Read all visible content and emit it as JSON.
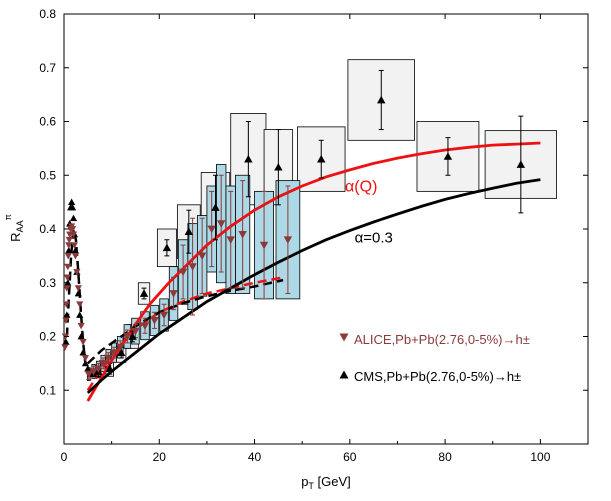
{
  "chart_data": {
    "type": "scatter",
    "xlabel": "p",
    "xlabel_sub": "T",
    "xlabel_unit": "[GeV]",
    "ylabel": "R",
    "ylabel_sub": "AA",
    "ylabel_sup": "π",
    "xlim": [
      0,
      110
    ],
    "ylim": [
      0.0,
      0.8
    ],
    "xticks": [
      "0",
      "20",
      "40",
      "60",
      "80",
      "100"
    ],
    "yticks": [
      "0.1",
      "0.2",
      "0.3",
      "0.4",
      "0.5",
      "0.6",
      "0.7",
      "0.8"
    ],
    "legend": [
      {
        "label": "ALICE,Pb+Pb(2.76,0-5%)→h±",
        "color": "#8b3a3a",
        "marker": "triangle-down"
      },
      {
        "label": "CMS,Pb+Pb(2.76,0-5%)→h±",
        "color": "#000000",
        "marker": "triangle-up"
      }
    ],
    "annotations": [
      {
        "text": "α(Q)",
        "x": 59,
        "y": 0.47,
        "color": "#ee1111"
      },
      {
        "text": "α=0.3",
        "x": 61,
        "y": 0.375,
        "color": "#000000"
      }
    ],
    "curves": [
      {
        "name": "α(Q)",
        "color": "#ee1111",
        "dash": false,
        "x": [
          5,
          7,
          10,
          14,
          18,
          22,
          26,
          30,
          35,
          40,
          45,
          50,
          55,
          60,
          65,
          70,
          75,
          80,
          85,
          90,
          95,
          100
        ],
        "y": [
          0.08,
          0.11,
          0.155,
          0.21,
          0.26,
          0.3,
          0.335,
          0.37,
          0.405,
          0.435,
          0.46,
          0.48,
          0.497,
          0.51,
          0.522,
          0.532,
          0.54,
          0.547,
          0.552,
          0.556,
          0.558,
          0.56
        ]
      },
      {
        "name": "α(Q) dashed",
        "color": "#ee1111",
        "dash": true,
        "x": [
          5,
          8,
          12,
          16,
          20,
          25,
          30,
          35,
          40,
          46
        ],
        "y": [
          0.1,
          0.14,
          0.185,
          0.22,
          0.245,
          0.265,
          0.28,
          0.29,
          0.3,
          0.31
        ]
      },
      {
        "name": "α=0.3",
        "color": "#000000",
        "dash": false,
        "x": [
          5,
          8,
          10,
          15,
          20,
          25,
          30,
          35,
          40,
          45,
          50,
          55,
          60,
          65,
          70,
          75,
          80,
          85,
          90,
          95,
          100
        ],
        "y": [
          0.095,
          0.12,
          0.135,
          0.17,
          0.205,
          0.235,
          0.265,
          0.29,
          0.315,
          0.338,
          0.36,
          0.38,
          0.397,
          0.413,
          0.428,
          0.442,
          0.455,
          0.466,
          0.476,
          0.485,
          0.492
        ]
      },
      {
        "name": "α=0.3 dashed",
        "color": "#000000",
        "dash": true,
        "x": [
          5,
          8,
          12,
          16,
          20,
          25,
          30,
          35,
          40,
          46
        ],
        "y": [
          0.15,
          0.175,
          0.2,
          0.225,
          0.245,
          0.262,
          0.275,
          0.285,
          0.293,
          0.305
        ]
      },
      {
        "name": "low-pT black dashed",
        "color": "#000000",
        "dash": true,
        "x": [
          0.6,
          1.0,
          1.5,
          2.0,
          2.5,
          3.0,
          3.5,
          4.0,
          4.5
        ],
        "y": [
          0.2,
          0.27,
          0.35,
          0.4,
          0.38,
          0.32,
          0.25,
          0.19,
          0.15
        ]
      }
    ],
    "series": [
      {
        "name": "CMS",
        "color": "#000000",
        "marker": "triangle-up",
        "box_fill": "#f2f2f2",
        "points": [
          {
            "x": 7.2,
            "y": 0.135,
            "xerr": 0.6,
            "yerr": 0.01,
            "syst": 0.012
          },
          {
            "x": 9.6,
            "y": 0.14,
            "xerr": 0.8,
            "yerr": 0.01,
            "syst": 0.014
          },
          {
            "x": 12.0,
            "y": 0.17,
            "xerr": 1.0,
            "yerr": 0.01,
            "syst": 0.018
          },
          {
            "x": 14.4,
            "y": 0.2,
            "xerr": 1.2,
            "yerr": 0.01,
            "syst": 0.022
          },
          {
            "x": 16.8,
            "y": 0.28,
            "xerr": 1.2,
            "yerr": 0.01,
            "syst": 0.02
          },
          {
            "x": 21.6,
            "y": 0.365,
            "xerr": 2.0,
            "yerr": 0.015,
            "syst": 0.035
          },
          {
            "x": 26.2,
            "y": 0.395,
            "xerr": 2.4,
            "yerr": 0.04,
            "syst": 0.05
          },
          {
            "x": 31.8,
            "y": 0.44,
            "xerr": 3.0,
            "yerr": 0.06,
            "syst": 0.065
          },
          {
            "x": 38.7,
            "y": 0.53,
            "xerr": 3.7,
            "yerr": 0.07,
            "syst": 0.085
          },
          {
            "x": 45.0,
            "y": 0.515,
            "xerr": 3.0,
            "yerr": 0.07,
            "syst": 0.07
          },
          {
            "x": 54.0,
            "y": 0.53,
            "xerr": 5.0,
            "yerr": 0.035,
            "syst": 0.06
          },
          {
            "x": 66.6,
            "y": 0.64,
            "xerr": 7.0,
            "yerr": 0.055,
            "syst": 0.075
          },
          {
            "x": 80.6,
            "y": 0.535,
            "xerr": 6.5,
            "yerr": 0.035,
            "syst": 0.065
          },
          {
            "x": 95.9,
            "y": 0.52,
            "xerr": 7.5,
            "yerr": 0.09,
            "syst": 0.063
          }
        ]
      },
      {
        "name": "CMS low-pT",
        "color": "#000000",
        "marker": "triangle-up",
        "points": [
          {
            "x": 0.4,
            "y": 0.19
          },
          {
            "x": 0.6,
            "y": 0.24
          },
          {
            "x": 0.8,
            "y": 0.3
          },
          {
            "x": 1.0,
            "y": 0.36
          },
          {
            "x": 1.2,
            "y": 0.41
          },
          {
            "x": 1.4,
            "y": 0.44
          },
          {
            "x": 1.6,
            "y": 0.45
          },
          {
            "x": 1.8,
            "y": 0.44
          },
          {
            "x": 2.0,
            "y": 0.42
          },
          {
            "x": 2.2,
            "y": 0.39
          },
          {
            "x": 2.4,
            "y": 0.36
          },
          {
            "x": 2.7,
            "y": 0.32
          },
          {
            "x": 3.0,
            "y": 0.28
          },
          {
            "x": 3.3,
            "y": 0.24
          },
          {
            "x": 3.6,
            "y": 0.2
          },
          {
            "x": 4.0,
            "y": 0.17
          },
          {
            "x": 4.5,
            "y": 0.15
          },
          {
            "x": 5.0,
            "y": 0.14
          },
          {
            "x": 5.6,
            "y": 0.13
          },
          {
            "x": 6.2,
            "y": 0.13
          }
        ]
      },
      {
        "name": "ALICE",
        "color": "#8b3a3a",
        "marker": "triangle-down",
        "box_fill": "#add8e6",
        "points": [
          {
            "x": 5.2,
            "y": 0.13,
            "xerr": 0.3,
            "yerr": 0.01,
            "syst": 0.012
          },
          {
            "x": 6.2,
            "y": 0.135,
            "xerr": 0.35,
            "yerr": 0.01,
            "syst": 0.013
          },
          {
            "x": 7.2,
            "y": 0.14,
            "xerr": 0.4,
            "yerr": 0.01,
            "syst": 0.014
          },
          {
            "x": 8.2,
            "y": 0.15,
            "xerr": 0.45,
            "yerr": 0.01,
            "syst": 0.015
          },
          {
            "x": 9.3,
            "y": 0.16,
            "xerr": 0.5,
            "yerr": 0.01,
            "syst": 0.016
          },
          {
            "x": 10.5,
            "y": 0.17,
            "xerr": 0.5,
            "yerr": 0.01,
            "syst": 0.018
          },
          {
            "x": 11.8,
            "y": 0.18,
            "xerr": 0.6,
            "yerr": 0.012,
            "syst": 0.02
          },
          {
            "x": 13.3,
            "y": 0.2,
            "xerr": 0.7,
            "yerr": 0.012,
            "syst": 0.022
          },
          {
            "x": 15.0,
            "y": 0.21,
            "xerr": 0.8,
            "yerr": 0.012,
            "syst": 0.024
          },
          {
            "x": 17.0,
            "y": 0.22,
            "xerr": 0.9,
            "yerr": 0.014,
            "syst": 0.026
          },
          {
            "x": 19.0,
            "y": 0.23,
            "xerr": 0.9,
            "yerr": 0.015,
            "syst": 0.028
          },
          {
            "x": 21.0,
            "y": 0.24,
            "xerr": 0.9,
            "yerr": 0.02,
            "syst": 0.03
          },
          {
            "x": 23.0,
            "y": 0.28,
            "xerr": 0.9,
            "yerr": 0.03,
            "syst": 0.05
          },
          {
            "x": 25.0,
            "y": 0.32,
            "xerr": 1.0,
            "yerr": 0.05,
            "syst": 0.06
          },
          {
            "x": 27.0,
            "y": 0.33,
            "xerr": 1.0,
            "yerr": 0.09,
            "syst": 0.08
          },
          {
            "x": 29.0,
            "y": 0.35,
            "xerr": 1.0,
            "yerr": 0.07,
            "syst": 0.075
          },
          {
            "x": 31.0,
            "y": 0.4,
            "xerr": 1.0,
            "yerr": 0.07,
            "syst": 0.08
          },
          {
            "x": 33.0,
            "y": 0.41,
            "xerr": 1.0,
            "yerr": 0.09,
            "syst": 0.11
          },
          {
            "x": 35.0,
            "y": 0.38,
            "xerr": 1.0,
            "yerr": 0.09,
            "syst": 0.1
          },
          {
            "x": 37.5,
            "y": 0.39,
            "xerr": 1.5,
            "yerr": 0.1,
            "syst": 0.11
          },
          {
            "x": 42.0,
            "y": 0.37,
            "xerr": 2.0,
            "yerr": 0.1,
            "syst": 0.1
          },
          {
            "x": 47.0,
            "y": 0.38,
            "xerr": 2.5,
            "yerr": 0.1,
            "syst": 0.11
          }
        ]
      },
      {
        "name": "ALICE low-pT",
        "color": "#8b3a3a",
        "marker": "triangle-down",
        "points": [
          {
            "x": 0.2,
            "y": 0.18
          },
          {
            "x": 0.3,
            "y": 0.2
          },
          {
            "x": 0.4,
            "y": 0.23
          },
          {
            "x": 0.5,
            "y": 0.26
          },
          {
            "x": 0.6,
            "y": 0.29
          },
          {
            "x": 0.7,
            "y": 0.31
          },
          {
            "x": 0.8,
            "y": 0.33
          },
          {
            "x": 0.9,
            "y": 0.35
          },
          {
            "x": 1.0,
            "y": 0.37
          },
          {
            "x": 1.1,
            "y": 0.38
          },
          {
            "x": 1.2,
            "y": 0.39
          },
          {
            "x": 1.4,
            "y": 0.4
          },
          {
            "x": 1.6,
            "y": 0.405
          },
          {
            "x": 1.8,
            "y": 0.4
          },
          {
            "x": 2.0,
            "y": 0.39
          },
          {
            "x": 2.2,
            "y": 0.37
          },
          {
            "x": 2.4,
            "y": 0.35
          },
          {
            "x": 2.7,
            "y": 0.32
          },
          {
            "x": 3.0,
            "y": 0.29
          },
          {
            "x": 3.3,
            "y": 0.26
          },
          {
            "x": 3.6,
            "y": 0.22
          },
          {
            "x": 4.0,
            "y": 0.19
          },
          {
            "x": 4.5,
            "y": 0.16
          }
        ]
      }
    ]
  }
}
